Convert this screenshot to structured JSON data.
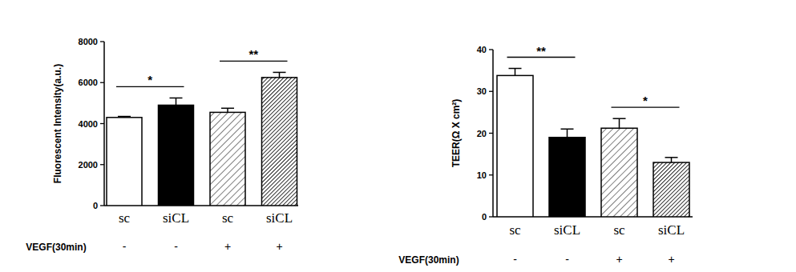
{
  "chart_data": [
    {
      "type": "bar",
      "y_label": "Fluorescent Intensity(a.u.)",
      "categories": [
        "sc",
        "siCL",
        "sc",
        "siCL"
      ],
      "values": [
        4300,
        4900,
        4550,
        6250
      ],
      "errors": [
        50,
        350,
        200,
        250
      ],
      "colors": [
        "#ffffff",
        "#000000",
        "#e6e6e6",
        "#666666"
      ],
      "ylim": [
        0,
        8000
      ],
      "yticks": [
        0,
        2000,
        4000,
        6000,
        8000
      ],
      "annotations": [
        {
          "text": "*",
          "between": [
            0,
            1
          ]
        },
        {
          "text": "**",
          "between": [
            2,
            3
          ]
        }
      ],
      "condition_row": {
        "label": "VEGF(30min)",
        "values": [
          "-",
          "-",
          "+",
          "+"
        ]
      }
    },
    {
      "type": "bar",
      "y_label": "TEER(Ω X cm²)",
      "categories": [
        "sc",
        "siCL",
        "sc",
        "siCL"
      ],
      "values": [
        33.8,
        19,
        21.2,
        13
      ],
      "errors": [
        1.7,
        2,
        2.3,
        1.2
      ],
      "colors": [
        "#ffffff",
        "#000000",
        "#e6e6e6",
        "#666666"
      ],
      "ylim": [
        0,
        40
      ],
      "yticks": [
        0,
        10,
        20,
        30,
        40
      ],
      "annotations": [
        {
          "text": "**",
          "between": [
            0,
            1
          ]
        },
        {
          "text": "*",
          "between": [
            2,
            3
          ]
        }
      ],
      "condition_row": {
        "label": "VEGF(30min)",
        "values": [
          "-",
          "-",
          "+",
          "+"
        ]
      }
    }
  ]
}
